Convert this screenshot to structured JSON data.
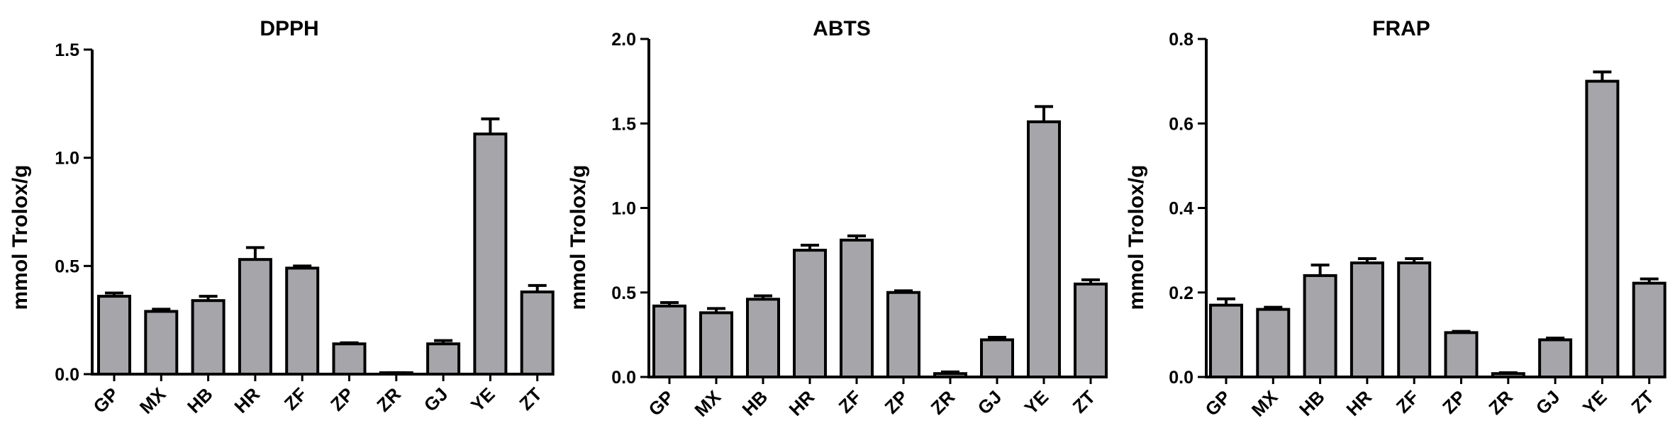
{
  "chart_data": [
    {
      "type": "bar",
      "title": "DPPH",
      "ylabel": "mmol Trolox/g",
      "categories": [
        "GP",
        "MX",
        "HB",
        "HR",
        "ZF",
        "ZP",
        "ZR",
        "GJ",
        "YE",
        "ZT"
      ],
      "values": [
        0.36,
        0.29,
        0.34,
        0.53,
        0.49,
        0.14,
        0.005,
        0.14,
        1.11,
        0.38
      ],
      "errors": [
        0.015,
        0.01,
        0.02,
        0.055,
        0.01,
        0.005,
        0.002,
        0.015,
        0.07,
        0.03
      ],
      "ylim": [
        0,
        1.5
      ],
      "yticks": [
        "0.0",
        "0.5",
        "1.0",
        "1.5"
      ],
      "ytick_values": [
        0,
        0.5,
        1.0,
        1.5
      ],
      "grid": false
    },
    {
      "type": "bar",
      "title": "ABTS",
      "ylabel": "mmol Trolox/g",
      "categories": [
        "GP",
        "MX",
        "HB",
        "HR",
        "ZF",
        "ZP",
        "ZR",
        "GJ",
        "YE",
        "ZT"
      ],
      "values": [
        0.42,
        0.38,
        0.46,
        0.75,
        0.81,
        0.5,
        0.02,
        0.22,
        1.51,
        0.55
      ],
      "errors": [
        0.02,
        0.025,
        0.02,
        0.03,
        0.025,
        0.01,
        0.01,
        0.015,
        0.09,
        0.025
      ],
      "ylim": [
        0,
        2.0
      ],
      "yticks": [
        "0.0",
        "0.5",
        "1.0",
        "1.5",
        "2.0"
      ],
      "ytick_values": [
        0,
        0.5,
        1.0,
        1.5,
        2.0
      ],
      "grid": false
    },
    {
      "type": "bar",
      "title": "FRAP",
      "ylabel": "mmol Trolox/g",
      "categories": [
        "GP",
        "MX",
        "HB",
        "HR",
        "ZF",
        "ZP",
        "ZR",
        "GJ",
        "YE",
        "ZT"
      ],
      "values": [
        0.17,
        0.16,
        0.24,
        0.27,
        0.27,
        0.105,
        0.008,
        0.088,
        0.7,
        0.222
      ],
      "errors": [
        0.015,
        0.005,
        0.025,
        0.01,
        0.01,
        0.003,
        0.002,
        0.004,
        0.022,
        0.01
      ],
      "ylim": [
        0,
        0.8
      ],
      "yticks": [
        "0.0",
        "0.2",
        "0.4",
        "0.6",
        "0.8"
      ],
      "ytick_values": [
        0,
        0.2,
        0.4,
        0.6,
        0.8
      ],
      "grid": false
    }
  ],
  "colors": {
    "bar_fill": "#a6a6aa",
    "bar_stroke": "#000000"
  }
}
